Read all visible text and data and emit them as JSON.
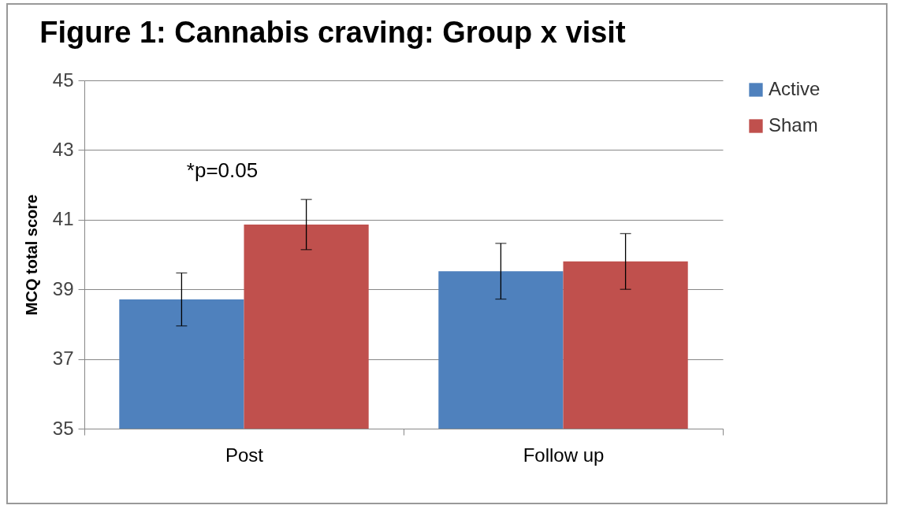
{
  "chart_data": {
    "type": "bar",
    "title": "Figure 1: Cannabis craving: Group x visit",
    "ylabel": "MCQ total score",
    "categories": [
      "Post",
      "Follow up"
    ],
    "series": [
      {
        "name": "Active",
        "color": "#4f81bd",
        "values": [
          38.71,
          39.52
        ],
        "errors": [
          0.76,
          0.8
        ]
      },
      {
        "name": "Sham",
        "color": "#c0504d",
        "values": [
          40.86,
          39.8
        ],
        "errors": [
          0.72,
          0.8
        ]
      }
    ],
    "ylim": [
      35,
      45
    ],
    "yticks": [
      35,
      37,
      39,
      41,
      43,
      45
    ],
    "grid": "y",
    "legend": "right",
    "annotations": [
      "*p=0.05"
    ]
  }
}
